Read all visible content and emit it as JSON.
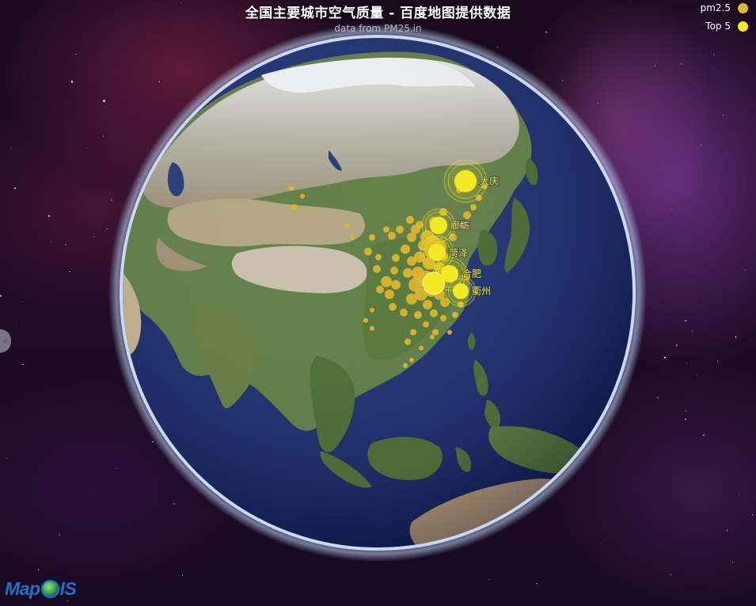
{
  "title": "全国主要城市空气质量 - 百度地图提供数据",
  "subtitle": "data from PM25.in",
  "legend": [
    {
      "label": "pm2.5",
      "color": "#e0b82e"
    },
    {
      "label": "Top 5",
      "color": "#f4e925"
    }
  ],
  "top5_cities": [
    "大庆",
    "廊坊",
    "菏泽",
    "合肥",
    "衢州"
  ],
  "side_handle_icon": "double-chevron-left-icon",
  "logo_text": {
    "prefix": "Map",
    "suffix": "IS"
  },
  "colors": {
    "pm25_marker": "#e0b82e",
    "top5_marker": "#f4e925",
    "ocean": "#23356f",
    "land_green": "#5f7d44",
    "desert": "#a89a7c",
    "snow": "#e9ecef",
    "atmosphere": "#cfe4ff"
  }
}
